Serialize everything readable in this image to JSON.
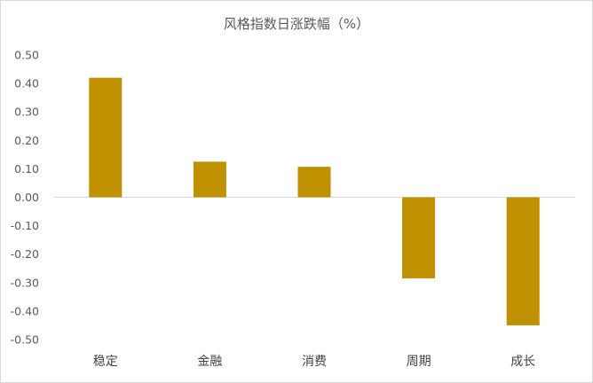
{
  "chart_data": {
    "type": "bar",
    "title": "风格指数日涨跌幅（%）",
    "categories": [
      "稳定",
      "金融",
      "消费",
      "周期",
      "成长"
    ],
    "values": [
      0.42,
      0.125,
      0.107,
      -0.285,
      -0.45
    ],
    "ylim": [
      -0.5,
      0.5
    ],
    "yticks": [
      "0.50",
      "0.40",
      "0.30",
      "0.20",
      "0.10",
      "0.00",
      "-0.10",
      "-0.20",
      "-0.30",
      "-0.40",
      "-0.50"
    ],
    "bar_color": "#bf9000",
    "grid": false,
    "legend": false
  }
}
